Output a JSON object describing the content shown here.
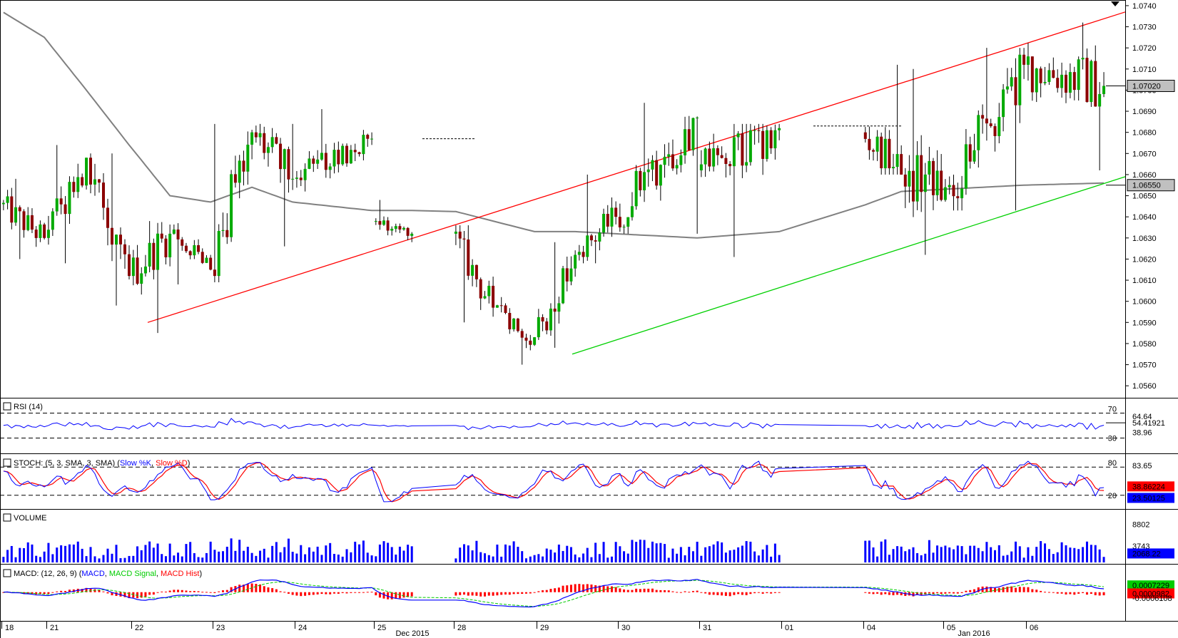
{
  "chart_data": {
    "type": "candlestick",
    "price_axis": {
      "ylim": [
        1.0555,
        1.0742
      ],
      "ticks": [
        "1.0740",
        "1.0730",
        "1.0720",
        "1.0710",
        "1.0700",
        "1.0690",
        "1.0680",
        "1.0670",
        "1.0660",
        "1.0650",
        "1.0640",
        "1.0630",
        "1.0620",
        "1.0610",
        "1.0600",
        "1.0590",
        "1.0580",
        "1.0570",
        "1.0560"
      ],
      "current_price_label": "1.07020",
      "current_price": 1.0702,
      "ma_label": "1.06550",
      "ma_value": 1.0655
    },
    "x_axis": {
      "labels": [
        "18",
        "21",
        "22",
        "23",
        "24",
        "25",
        "28",
        "29",
        "30",
        "31",
        "01",
        "04",
        "05",
        "06"
      ],
      "months": [
        "Dec 2015",
        "Jan 2016"
      ]
    },
    "sessions": [
      {
        "open": 1.0646,
        "close": 1.063,
        "high": 1.0658,
        "low": 1.062,
        "ma_start": 1.0738,
        "ma_end": 1.0725
      },
      {
        "open": 1.063,
        "close": 1.0668,
        "high": 1.0674,
        "low": 1.0618,
        "ma_start": 1.0725,
        "ma_end": 1.07
      },
      {
        "open": 1.0668,
        "close": 1.0612,
        "high": 1.067,
        "low": 1.0598,
        "ma_start": 1.07,
        "ma_end": 1.0674
      },
      {
        "open": 1.0612,
        "close": 1.0632,
        "high": 1.0638,
        "low": 1.0585,
        "ma_start": 1.0674,
        "ma_end": 1.065
      },
      {
        "open": 1.0632,
        "close": 1.0615,
        "high": 1.0637,
        "low": 1.0608,
        "ma_start": 1.065,
        "ma_end": 1.0647
      },
      {
        "open": 1.0615,
        "close": 1.068,
        "high": 1.0684,
        "low": 1.0609,
        "ma_start": 1.0647,
        "ma_end": 1.0654
      },
      {
        "open": 1.068,
        "close": 1.0658,
        "high": 1.0684,
        "low": 1.0626,
        "ma_start": 1.0654,
        "ma_end": 1.0647
      },
      {
        "open": 1.0658,
        "close": 1.0677,
        "high": 1.0691,
        "low": 1.0652,
        "ma_start": 1.0647,
        "ma_end": 1.0643
      },
      {
        "open": 1.0638,
        "close": 1.0632,
        "high": 1.0648,
        "low": 1.0628,
        "ma_start": 1.0643,
        "ma_end": 1.0643
      },
      {
        "open": 1.0632,
        "close": 1.0597,
        "high": 1.0636,
        "low": 1.059,
        "ma_start": 1.0643,
        "ma_end": 1.0638
      },
      {
        "open": 1.0597,
        "close": 1.0583,
        "high": 1.0602,
        "low": 1.057,
        "ma_start": 1.0638,
        "ma_end": 1.0633
      },
      {
        "open": 1.0583,
        "close": 1.0622,
        "high": 1.0628,
        "low": 1.0578,
        "ma_start": 1.0633,
        "ma_end": 1.0633
      },
      {
        "open": 1.0622,
        "close": 1.064,
        "high": 1.066,
        "low": 1.0618,
        "ma_start": 1.0633,
        "ma_end": 1.0632
      },
      {
        "open": 1.064,
        "close": 1.0687,
        "high": 1.0694,
        "low": 1.0632,
        "ma_start": 1.0632,
        "ma_end": 1.063
      },
      {
        "open": 1.0662,
        "close": 1.0682,
        "high": 1.0684,
        "low": 1.0621,
        "ma_start": 1.063,
        "ma_end": 1.0633
      },
      {
        "open": 1.068,
        "close": 1.066,
        "high": 1.0712,
        "low": 1.066,
        "ma_start": 1.0645,
        "ma_end": 1.0652
      },
      {
        "open": 1.066,
        "close": 1.0648,
        "high": 1.071,
        "low": 1.0622,
        "ma_start": 1.0652,
        "ma_end": 1.0653
      },
      {
        "open": 1.0648,
        "close": 1.0712,
        "high": 1.072,
        "low": 1.0643,
        "ma_start": 1.0653,
        "ma_end": 1.0655
      },
      {
        "open": 1.0712,
        "close": 1.0702,
        "high": 1.0732,
        "low": 1.0662,
        "ma_start": 1.0655,
        "ma_end": 1.0656
      }
    ],
    "channel_lines": [
      {
        "color": "#ff0000",
        "points": [
          [
            1.059,
            0
          ],
          [
            1.0737,
            1
          ]
        ]
      },
      {
        "color": "#00d000",
        "points": [
          [
            1.0575,
            0
          ],
          [
            1.0659,
            1
          ]
        ]
      }
    ],
    "resistance_levels": [
      1.0677,
      1.0683
    ],
    "rsi": {
      "title": "RSI (14)",
      "levels": [
        "70",
        "30"
      ],
      "value_labels": [
        "64.64",
        "54.41921",
        "38.96"
      ],
      "current": 54.41921
    },
    "stoch": {
      "title_prefix": "STOCH: (5, 3, SMA, 3, SMA)",
      "k_label": "Slow %K",
      "d_label": "Slow %D",
      "levels": [
        "80",
        "20"
      ],
      "value_labels": [
        "83.65",
        "38.86224",
        "23.50125"
      ],
      "k_current": 23.50125,
      "d_current": 38.86224
    },
    "volume": {
      "title": "VOLUME",
      "value_labels": [
        "8802",
        "3743",
        "2068.22"
      ],
      "current": 2068.22
    },
    "macd": {
      "title_prefix": "MACD: (12, 26, 9)",
      "macd_label": "MACD",
      "signal_label": "MACD Signal",
      "hist_label": "MACD Hist",
      "value_labels": [
        "0.0007229",
        "0.0000982",
        "-0.0006108"
      ],
      "macd_current": 0.0007229,
      "hist_current": 9.82e-05
    },
    "colors": {
      "up_candle": "#00aa00",
      "down_candle": "#8b0000",
      "wick": "#000000",
      "ma": "#808080",
      "rsi": "#0000ff",
      "stoch_k": "#0000ff",
      "stoch_d": "#ff0000",
      "volume": "#0000ff",
      "macd": "#0000ff",
      "macd_signal": "#00cc00",
      "macd_hist": "#ff0000",
      "price_tag_bg": "#c0c0c0",
      "macd_tag_bg": "#00cc00",
      "hist_tag_bg": "#ff0000",
      "volume_tag_bg": "#0000ff"
    }
  }
}
